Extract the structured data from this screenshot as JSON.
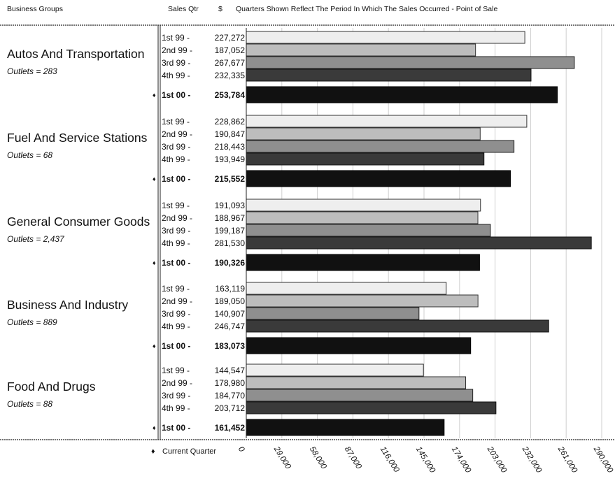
{
  "header": {
    "col1": "Business Groups",
    "col2": "Sales Qtr",
    "col3": "$",
    "col4": "Quarters Shown Reflect The Period In Which The Sales Occurred - Point of Sale"
  },
  "legend": {
    "marker": "♦",
    "label": "Current Quarter"
  },
  "colors": {
    "q1": "#eeeeee",
    "q2": "#bdbdbd",
    "q3": "#8f8f8f",
    "q4": "#3a3a3a",
    "current": "#111111"
  },
  "chart_data": {
    "type": "bar",
    "orientation": "horizontal",
    "xlim": [
      0,
      290000
    ],
    "x_ticks": [
      "0",
      "29,000",
      "58,000",
      "87,000",
      "116,000",
      "145,000",
      "174,000",
      "203,000",
      "232,000",
      "261,000",
      "290,000"
    ],
    "grid": true,
    "groups": [
      {
        "name": "Autos And Transportation",
        "outlets": "Outlets = 283",
        "quarters": [
          {
            "label": "1st 99 -",
            "value": 227272,
            "display": "227,272"
          },
          {
            "label": "2nd 99 -",
            "value": 187052,
            "display": "187,052"
          },
          {
            "label": "3rd 99 -",
            "value": 267677,
            "display": "267,677"
          },
          {
            "label": "4th 99 -",
            "value": 232335,
            "display": "232,335"
          },
          {
            "label": "1st 00 -",
            "value": 253784,
            "display": "253,784",
            "current": true
          }
        ]
      },
      {
        "name": "Fuel And Service Stations",
        "outlets": "Outlets = 68",
        "quarters": [
          {
            "label": "1st 99 -",
            "value": 228862,
            "display": "228,862"
          },
          {
            "label": "2nd 99 -",
            "value": 190847,
            "display": "190,847"
          },
          {
            "label": "3rd 99 -",
            "value": 218443,
            "display": "218,443"
          },
          {
            "label": "4th 99 -",
            "value": 193949,
            "display": "193,949"
          },
          {
            "label": "1st 00 -",
            "value": 215552,
            "display": "215,552",
            "current": true
          }
        ]
      },
      {
        "name": "General Consumer Goods",
        "outlets": "Outlets = 2,437",
        "quarters": [
          {
            "label": "1st 99 -",
            "value": 191093,
            "display": "191,093"
          },
          {
            "label": "2nd 99 -",
            "value": 188967,
            "display": "188,967"
          },
          {
            "label": "3rd 99 -",
            "value": 199187,
            "display": "199,187"
          },
          {
            "label": "4th 99 -",
            "value": 281530,
            "display": "281,530"
          },
          {
            "label": "1st 00 -",
            "value": 190326,
            "display": "190,326",
            "current": true
          }
        ]
      },
      {
        "name": "Business And Industry",
        "outlets": "Outlets = 889",
        "quarters": [
          {
            "label": "1st 99 -",
            "value": 163119,
            "display": "163,119"
          },
          {
            "label": "2nd 99 -",
            "value": 189050,
            "display": "189,050"
          },
          {
            "label": "3rd 99 -",
            "value": 140907,
            "display": "140,907"
          },
          {
            "label": "4th 99 -",
            "value": 246747,
            "display": "246,747"
          },
          {
            "label": "1st 00 -",
            "value": 183073,
            "display": "183,073",
            "current": true
          }
        ]
      },
      {
        "name": "Food And Drugs",
        "outlets": "Outlets = 88",
        "quarters": [
          {
            "label": "1st 99 -",
            "value": 144547,
            "display": "144,547"
          },
          {
            "label": "2nd 99 -",
            "value": 178980,
            "display": "178,980"
          },
          {
            "label": "3rd 99 -",
            "value": 184770,
            "display": "184,770"
          },
          {
            "label": "4th 99 -",
            "value": 203712,
            "display": "203,712"
          },
          {
            "label": "1st 00 -",
            "value": 161452,
            "display": "161,452",
            "current": true
          }
        ]
      }
    ]
  }
}
